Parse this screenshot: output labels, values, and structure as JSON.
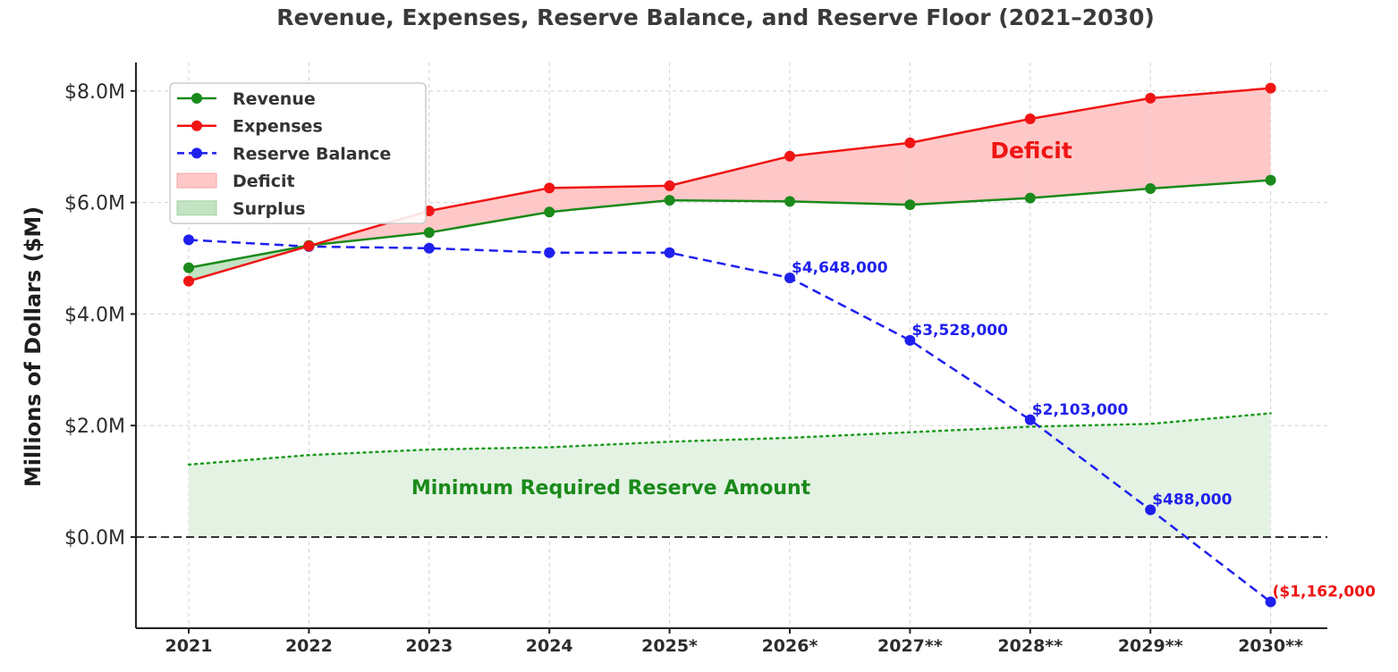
{
  "chart_data": {
    "type": "line",
    "title": "Revenue, Expenses, Reserve Balance, and Reserve Floor (2021–2030)",
    "xlabel": "",
    "ylabel": "Millions of Dollars ($M)",
    "categories": [
      "2021",
      "2022",
      "2023",
      "2024",
      "2025*",
      "2026*",
      "2027**",
      "2028**",
      "2029**",
      "2030**"
    ],
    "ylim": [
      -1.45,
      8.5
    ],
    "yticks": [
      {
        "value": 0,
        "label": "$0.0M"
      },
      {
        "value": 2,
        "label": "$2.0M"
      },
      {
        "value": 4,
        "label": "$4.0M"
      },
      {
        "value": 6,
        "label": "$6.0M"
      },
      {
        "value": 8,
        "label": "$8.0M"
      }
    ],
    "grid": true,
    "legend_position": "top-left",
    "series": [
      {
        "name": "Revenue",
        "style": "solid-marker",
        "color": "#1a8a1a",
        "values": [
          4.83,
          5.23,
          5.46,
          5.83,
          6.04,
          6.02,
          5.96,
          6.08,
          6.25,
          6.4
        ]
      },
      {
        "name": "Expenses",
        "style": "solid-marker",
        "color": "#f01414",
        "values": [
          4.59,
          5.22,
          5.85,
          6.26,
          6.3,
          6.83,
          7.07,
          7.5,
          7.87,
          8.05
        ]
      },
      {
        "name": "Reserve Balance",
        "style": "dashed-marker",
        "color": "#1f1fee",
        "values": [
          5.33,
          5.21,
          5.18,
          5.1,
          5.1,
          4.648,
          3.528,
          2.103,
          0.488,
          -1.162
        ]
      }
    ],
    "reserve_floor": {
      "style": "dotted",
      "color": "#1f9a1f",
      "values": [
        1.3,
        1.47,
        1.57,
        1.61,
        1.71,
        1.78,
        1.88,
        1.98,
        2.03,
        2.22
      ]
    },
    "legend": [
      {
        "label": "Revenue",
        "kind": "solid-line",
        "color": "#1a8a1a"
      },
      {
        "label": "Expenses",
        "kind": "solid-line",
        "color": "#f01414"
      },
      {
        "label": "Reserve Balance",
        "kind": "dashed-line",
        "color": "#1f1fee"
      },
      {
        "label": "Deficit",
        "kind": "patch",
        "color": "#ffc8c8",
        "edge": "#f0a5a5"
      },
      {
        "label": "Surplus",
        "kind": "patch",
        "color": "#c3e3c3",
        "edge": "#a3d3a3"
      }
    ],
    "annotations": [
      {
        "category_index": 5,
        "text": "$4,648,000",
        "color": "#1f1fee"
      },
      {
        "category_index": 6,
        "text": "$3,528,000",
        "color": "#1f1fee"
      },
      {
        "category_index": 7,
        "text": "$2,103,000",
        "color": "#1f1fee"
      },
      {
        "category_index": 8,
        "text": "$488,000",
        "color": "#1f1fee"
      },
      {
        "category_index": 9,
        "text": "($1,162,000",
        "color": "#f01414"
      }
    ],
    "region_labels": {
      "deficit": {
        "text": "Deficit",
        "color": "#f01414"
      },
      "reserve_floor": {
        "text": "Minimum Required Reserve Amount",
        "color": "#1a8a1a"
      }
    },
    "colors": {
      "deficit_fill": "#ffc8c8",
      "surplus_fill": "#c3e3c3",
      "floor_fill": "#e3f2e3",
      "zero_line": "#333333",
      "grid": "#d0d0d0"
    }
  }
}
